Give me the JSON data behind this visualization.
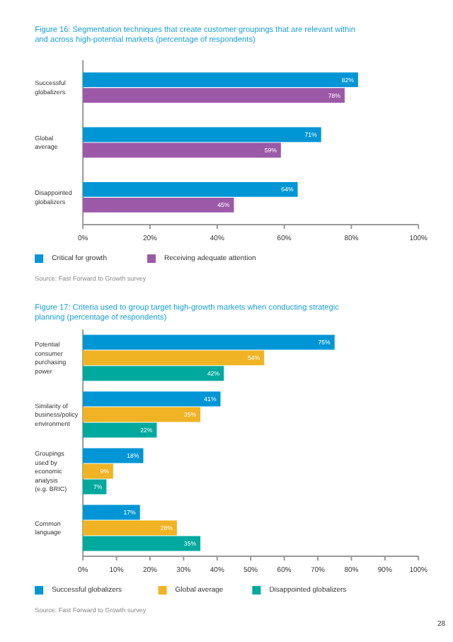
{
  "chart_data": [
    {
      "type": "bar",
      "orientation": "horizontal",
      "title": "Figure 16: Segmentation techniques that create customer groupings that are relevant within and across high-potential markets (percentage of respondents)",
      "categories": [
        "Successful globalizers",
        "Global average",
        "Disappointed globalizers"
      ],
      "series": [
        {
          "name": "Critical for growth",
          "color": "#0096d6",
          "values": [
            82,
            71,
            64
          ],
          "value_labels": [
            "82%",
            "71%",
            "64%"
          ]
        },
        {
          "name": "Receiving adequate attention",
          "color": "#9b59a8",
          "values": [
            78,
            59,
            45
          ],
          "value_labels": [
            "78%",
            "59%",
            "45%"
          ]
        }
      ],
      "xlim": [
        0,
        100
      ],
      "xticks": [
        {
          "value": 0,
          "label": "0%"
        },
        {
          "value": 20,
          "label": "20%"
        },
        {
          "value": 40,
          "label": "40%"
        },
        {
          "value": 60,
          "label": "60%"
        },
        {
          "value": 80,
          "label": "80%"
        },
        {
          "value": 100,
          "label": "100%"
        }
      ],
      "grid": false,
      "legend": "bottom",
      "annotations": [
        "Source: Fast Forward to Growth survey"
      ]
    },
    {
      "type": "bar",
      "orientation": "horizontal",
      "title": "Figure 17: Criteria used to group target high-growth markets when conducting strategic planning (percentage of respondents)",
      "categories": [
        "Potential consumer purchasing power",
        "Similarity of business/policy environment",
        "Groupings used by economic analysis (e.g. BRIC)",
        "Common language"
      ],
      "series": [
        {
          "name": "Successful globalizers",
          "color": "#0096d6",
          "values": [
            75,
            41,
            18,
            17
          ],
          "value_labels": [
            "75%",
            "41%",
            "18%",
            "17%"
          ]
        },
        {
          "name": "Global average",
          "color": "#f0b323",
          "values": [
            54,
            35,
            9,
            28
          ],
          "value_labels": [
            "54%",
            "35%",
            "9%",
            "28%"
          ]
        },
        {
          "name": "Disappointed globalizers",
          "color": "#00a99d",
          "values": [
            42,
            22,
            7,
            35
          ],
          "value_labels": [
            "42%",
            "22%",
            "7%",
            "35%"
          ]
        }
      ],
      "xlim": [
        0,
        100
      ],
      "xticks": [
        {
          "value": 0,
          "label": "0%"
        },
        {
          "value": 10,
          "label": "10%"
        },
        {
          "value": 20,
          "label": "20%"
        },
        {
          "value": 30,
          "label": "30%"
        },
        {
          "value": 40,
          "label": "40%"
        },
        {
          "value": 50,
          "label": "50%"
        },
        {
          "value": 60,
          "label": "60%"
        },
        {
          "value": 70,
          "label": "70%"
        },
        {
          "value": 80,
          "label": "80%"
        },
        {
          "value": 90,
          "label": "90%"
        },
        {
          "value": 100,
          "label": "100%"
        }
      ],
      "grid": false,
      "legend": "bottom",
      "annotations": [
        "Source: Fast Forward to Growth survey",
        "28"
      ]
    }
  ]
}
